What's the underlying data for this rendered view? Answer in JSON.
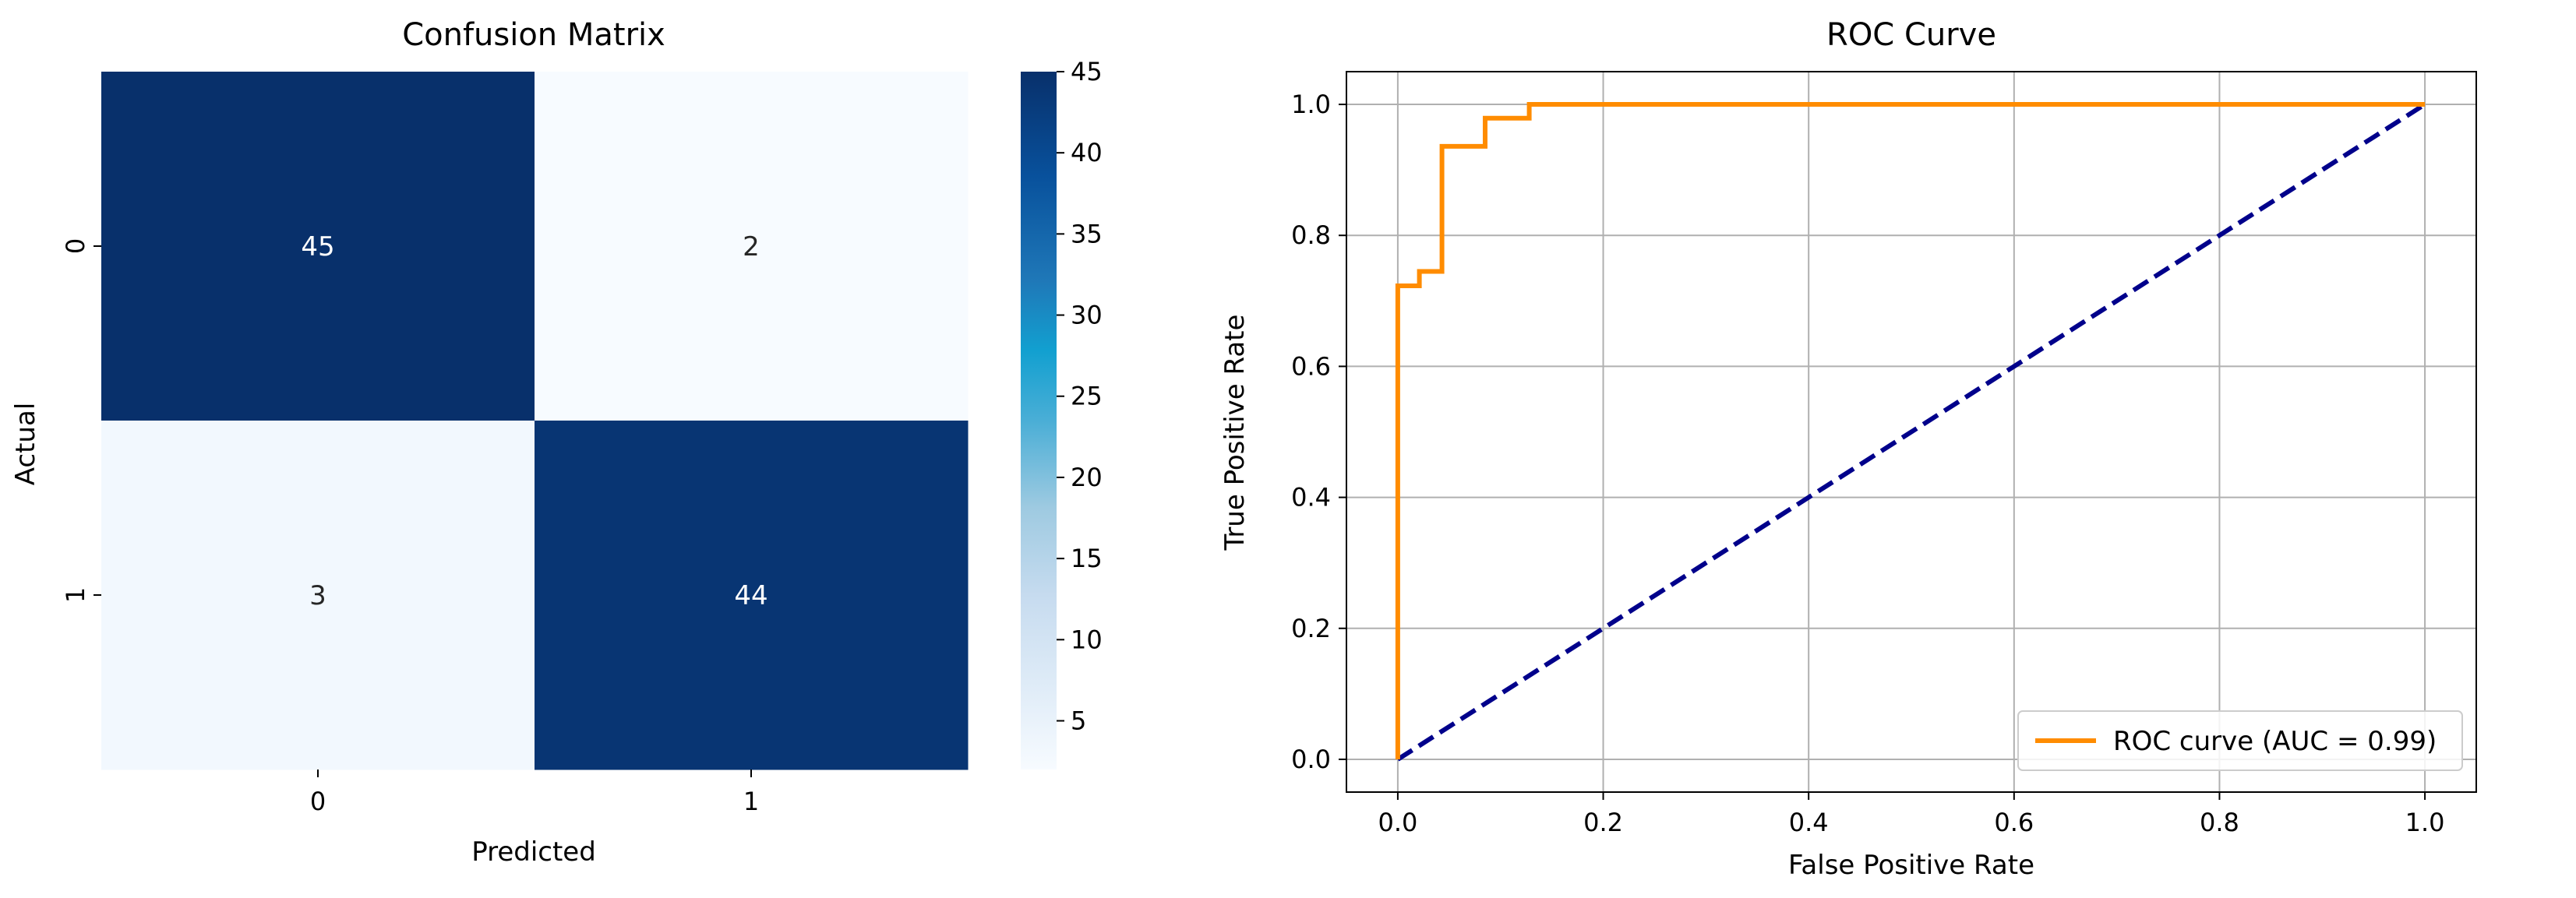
{
  "chart_data": [
    {
      "type": "heatmap",
      "title": "Confusion Matrix",
      "xlabel": "Predicted",
      "ylabel": "Actual",
      "x_categories": [
        "0",
        "1"
      ],
      "y_categories": [
        "0",
        "1"
      ],
      "values": [
        [
          45,
          2
        ],
        [
          3,
          44
        ]
      ],
      "colormap": "Blues",
      "colorbar": {
        "range": [
          2,
          45
        ],
        "ticks": [
          5,
          10,
          15,
          20,
          25,
          30,
          35,
          40,
          45
        ]
      }
    },
    {
      "type": "line",
      "title": "ROC Curve",
      "xlabel": "False Positive Rate",
      "ylabel": "True Positive Rate",
      "xlim": [
        -0.05,
        1.05
      ],
      "ylim": [
        -0.05,
        1.05
      ],
      "xticks": [
        "0.0",
        "0.2",
        "0.4",
        "0.6",
        "0.8",
        "1.0"
      ],
      "yticks": [
        "0.0",
        "0.2",
        "0.4",
        "0.6",
        "0.8",
        "1.0"
      ],
      "grid": true,
      "legend_position": "bottom-right",
      "series": [
        {
          "name": "ROC curve (AUC = 0.99)",
          "color": "#ff8c00",
          "style": "solid",
          "x": [
            0.0,
            0.0,
            0.0,
            0.021,
            0.021,
            0.043,
            0.043,
            0.085,
            0.085,
            0.128,
            0.128,
            1.0
          ],
          "y": [
            0.0,
            0.021,
            0.723,
            0.723,
            0.745,
            0.745,
            0.936,
            0.936,
            0.979,
            0.979,
            1.0,
            1.0
          ]
        },
        {
          "color": "#00008b",
          "style": "dashed",
          "x": [
            0.0,
            1.0
          ],
          "y": [
            0.0,
            1.0
          ]
        }
      ]
    }
  ]
}
